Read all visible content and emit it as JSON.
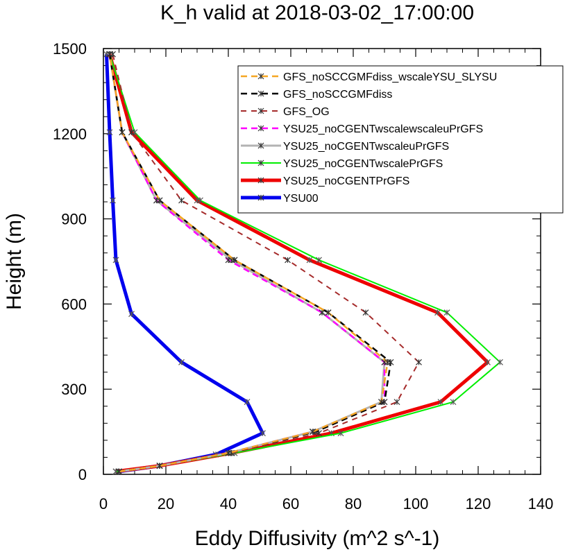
{
  "chart_data": {
    "type": "line",
    "title": "K_h valid at 2018-03-02_17:00:00",
    "xlabel": "Eddy Diffusivity (m^2 s^-1)",
    "ylabel": "Height (m)",
    "xlim": [
      0,
      140
    ],
    "ylim": [
      0,
      1500
    ],
    "x_ticks": [
      0,
      20,
      40,
      60,
      80,
      100,
      120,
      140
    ],
    "y_ticks": [
      0,
      300,
      600,
      900,
      1200,
      1500
    ],
    "grid": false,
    "legend_position": "top-right",
    "series": [
      {
        "name": "GFS_noSCCGMFdiss_wscaleYSU_SLYSU",
        "color": "#f5a623",
        "dash": "dash",
        "width": 2.5,
        "points": [
          [
            5,
            10
          ],
          [
            18,
            30
          ],
          [
            40,
            75
          ],
          [
            67,
            150
          ],
          [
            89,
            255
          ],
          [
            91,
            395
          ],
          [
            72,
            570
          ],
          [
            42,
            755
          ],
          [
            18,
            965
          ],
          [
            6,
            1205
          ],
          [
            2,
            1480
          ]
        ]
      },
      {
        "name": "GFS_noSCCGMFdiss",
        "color": "#000000",
        "dash": "dash",
        "width": 2.5,
        "points": [
          [
            5,
            10
          ],
          [
            18,
            30
          ],
          [
            40,
            75
          ],
          [
            68,
            150
          ],
          [
            90,
            255
          ],
          [
            92,
            395
          ],
          [
            72,
            570
          ],
          [
            42,
            755
          ],
          [
            18,
            965
          ],
          [
            6,
            1205
          ],
          [
            2,
            1480
          ]
        ]
      },
      {
        "name": "GFS_OG",
        "color": "#a52a2a",
        "dash": "dash",
        "width": 2,
        "points": [
          [
            5,
            10
          ],
          [
            18,
            30
          ],
          [
            41,
            75
          ],
          [
            69,
            145
          ],
          [
            94,
            255
          ],
          [
            101,
            395
          ],
          [
            84,
            570
          ],
          [
            59,
            755
          ],
          [
            25,
            965
          ],
          [
            9,
            1205
          ],
          [
            3,
            1480
          ]
        ]
      },
      {
        "name": "YSU25_noCGENTwscalewscaleuPrGFS",
        "color": "#ff00ff",
        "dash": "dash",
        "width": 2.5,
        "points": [
          [
            5,
            10
          ],
          [
            18,
            30
          ],
          [
            40,
            75
          ],
          [
            67,
            150
          ],
          [
            90,
            255
          ],
          [
            90,
            395
          ],
          [
            70,
            570
          ],
          [
            40,
            755
          ],
          [
            17,
            965
          ],
          [
            6,
            1205
          ],
          [
            2,
            1480
          ]
        ]
      },
      {
        "name": "YSU25_noCGENTwscaleuPrGFS",
        "color": "#b3b3b3",
        "dash": "solid",
        "width": 3,
        "points": [
          [
            5,
            10
          ],
          [
            18,
            30
          ],
          [
            40,
            75
          ],
          [
            67,
            150
          ],
          [
            89,
            255
          ],
          [
            90,
            395
          ],
          [
            70,
            570
          ],
          [
            41,
            755
          ],
          [
            17,
            965
          ],
          [
            6,
            1205
          ],
          [
            2,
            1480
          ]
        ]
      },
      {
        "name": "YSU25_noCGENTwscalePrGFS",
        "color": "#00ee00",
        "dash": "solid",
        "width": 2,
        "points": [
          [
            4,
            10
          ],
          [
            18,
            30
          ],
          [
            42,
            75
          ],
          [
            76,
            145
          ],
          [
            112,
            255
          ],
          [
            127,
            395
          ],
          [
            110,
            570
          ],
          [
            69,
            755
          ],
          [
            31,
            965
          ],
          [
            10,
            1205
          ],
          [
            2,
            1480
          ]
        ]
      },
      {
        "name": "YSU25_noCGENTPrGFS",
        "color": "#ee0000",
        "dash": "solid",
        "width": 5,
        "points": [
          [
            4,
            10
          ],
          [
            18,
            30
          ],
          [
            41,
            75
          ],
          [
            73,
            145
          ],
          [
            108,
            255
          ],
          [
            123,
            395
          ],
          [
            107,
            570
          ],
          [
            66,
            755
          ],
          [
            30,
            965
          ],
          [
            9,
            1205
          ],
          [
            2,
            1480
          ]
        ]
      },
      {
        "name": "YSU00",
        "color": "#0000ee",
        "dash": "solid",
        "width": 5,
        "points": [
          [
            5,
            10
          ],
          [
            18,
            30
          ],
          [
            36,
            70
          ],
          [
            51,
            145
          ],
          [
            46,
            255
          ],
          [
            25,
            395
          ],
          [
            9,
            565
          ],
          [
            4,
            755
          ],
          [
            3,
            965
          ],
          [
            2,
            1205
          ],
          [
            1,
            1480
          ]
        ]
      }
    ]
  }
}
